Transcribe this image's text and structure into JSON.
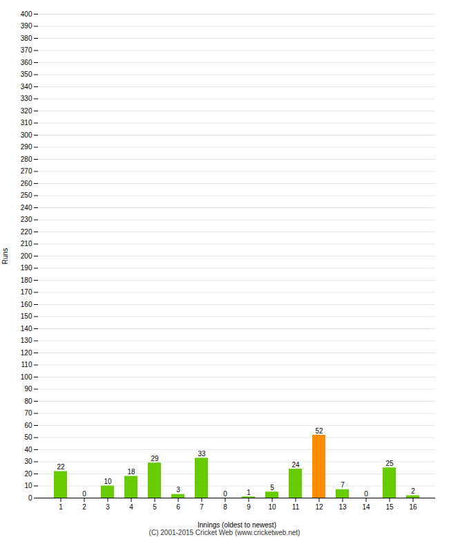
{
  "chart_data": {
    "type": "bar",
    "categories": [
      "1",
      "2",
      "3",
      "4",
      "5",
      "6",
      "7",
      "8",
      "9",
      "10",
      "11",
      "12",
      "13",
      "14",
      "15",
      "16"
    ],
    "values": [
      22,
      0,
      10,
      18,
      29,
      3,
      33,
      0,
      1,
      5,
      24,
      52,
      7,
      0,
      25,
      2
    ],
    "colors": [
      "#66cc00",
      "#66cc00",
      "#66cc00",
      "#66cc00",
      "#66cc00",
      "#66cc00",
      "#66cc00",
      "#66cc00",
      "#66cc00",
      "#66cc00",
      "#66cc00",
      "#ff8c00",
      "#66cc00",
      "#66cc00",
      "#66cc00",
      "#66cc00"
    ],
    "xlabel": "Innings (oldest to newest)",
    "ylabel": "Runs",
    "ylim": [
      0,
      400
    ],
    "yticks": [
      0,
      10,
      20,
      30,
      40,
      50,
      60,
      70,
      80,
      90,
      100,
      110,
      120,
      130,
      140,
      150,
      160,
      170,
      180,
      190,
      200,
      210,
      220,
      230,
      240,
      250,
      260,
      270,
      280,
      290,
      300,
      310,
      320,
      330,
      340,
      350,
      360,
      370,
      380,
      390,
      400
    ],
    "grid": true,
    "data_labels": true,
    "annotations": [
      "(C) 2001-2015 Cricket Web (www.cricketweb.net)"
    ]
  }
}
